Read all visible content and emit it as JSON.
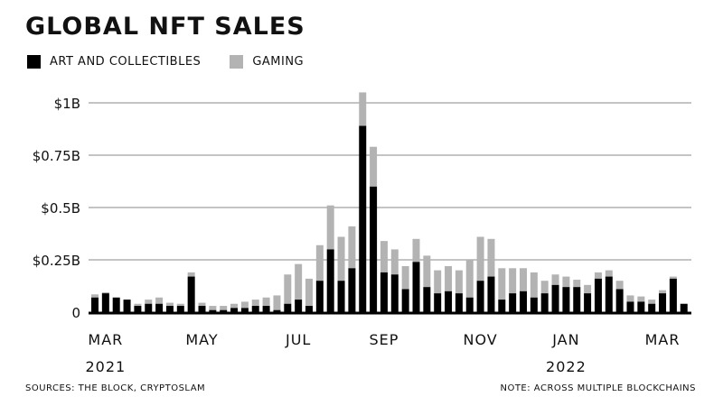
{
  "title": "GLOBAL NFT SALES",
  "footer": {
    "sources": "SOURCES: THE BLOCK, CRYPTOSLAM",
    "note": "NOTE: ACROSS MULTIPLE BLOCKCHAINS"
  },
  "colors": {
    "art": "#000000",
    "gaming": "#b3b3b3",
    "grid": "#888888",
    "axis": "#000000"
  },
  "chart_data": {
    "type": "bar",
    "stacked": true,
    "title": "GLOBAL NFT SALES",
    "legend_position": "top-left",
    "grid": true,
    "ylim": [
      0,
      1.05
    ],
    "y_ticks": [
      {
        "value": 0,
        "label": "0"
      },
      {
        "value": 0.25,
        "label": "$0.25B"
      },
      {
        "value": 0.5,
        "label": "$0.5B"
      },
      {
        "value": 0.75,
        "label": "$0.75B"
      },
      {
        "value": 1,
        "label": "$1B"
      }
    ],
    "x_labels": [
      {
        "label": "MAR",
        "bar_index": 1,
        "year": "2021"
      },
      {
        "label": "MAY",
        "bar_index": 10,
        "year": ""
      },
      {
        "label": "JUL",
        "bar_index": 19,
        "year": ""
      },
      {
        "label": "SEP",
        "bar_index": 27,
        "year": ""
      },
      {
        "label": "NOV",
        "bar_index": 36,
        "year": ""
      },
      {
        "label": "JAN",
        "bar_index": 44,
        "year": "2022"
      },
      {
        "label": "MAR",
        "bar_index": 53,
        "year": ""
      }
    ],
    "series": [
      {
        "name": "ART AND COLLECTIBLES",
        "color": "#000000",
        "values": [
          0.07,
          0.09,
          0.07,
          0.06,
          0.03,
          0.04,
          0.04,
          0.03,
          0.03,
          0.17,
          0.03,
          0.01,
          0.01,
          0.02,
          0.02,
          0.03,
          0.03,
          0.01,
          0.04,
          0.06,
          0.03,
          0.15,
          0.3,
          0.15,
          0.21,
          0.89,
          0.6,
          0.19,
          0.18,
          0.11,
          0.24,
          0.12,
          0.09,
          0.1,
          0.09,
          0.07,
          0.15,
          0.17,
          0.06,
          0.09,
          0.1,
          0.07,
          0.09,
          0.13,
          0.12,
          0.12,
          0.09,
          0.16,
          0.17,
          0.11,
          0.05,
          0.05,
          0.04,
          0.09,
          0.16,
          0.04
        ]
      },
      {
        "name": "GAMING",
        "color": "#b3b3b3",
        "values": [
          0.015,
          0.005,
          0.0,
          0.0,
          0.01,
          0.02,
          0.03,
          0.015,
          0.01,
          0.02,
          0.015,
          0.02,
          0.02,
          0.02,
          0.03,
          0.03,
          0.04,
          0.07,
          0.14,
          0.17,
          0.13,
          0.17,
          0.21,
          0.21,
          0.2,
          0.16,
          0.19,
          0.15,
          0.12,
          0.11,
          0.11,
          0.15,
          0.11,
          0.12,
          0.11,
          0.18,
          0.21,
          0.18,
          0.15,
          0.12,
          0.11,
          0.12,
          0.06,
          0.05,
          0.05,
          0.035,
          0.04,
          0.03,
          0.03,
          0.04,
          0.03,
          0.025,
          0.02,
          0.015,
          0.01,
          0.0
        ]
      }
    ]
  }
}
